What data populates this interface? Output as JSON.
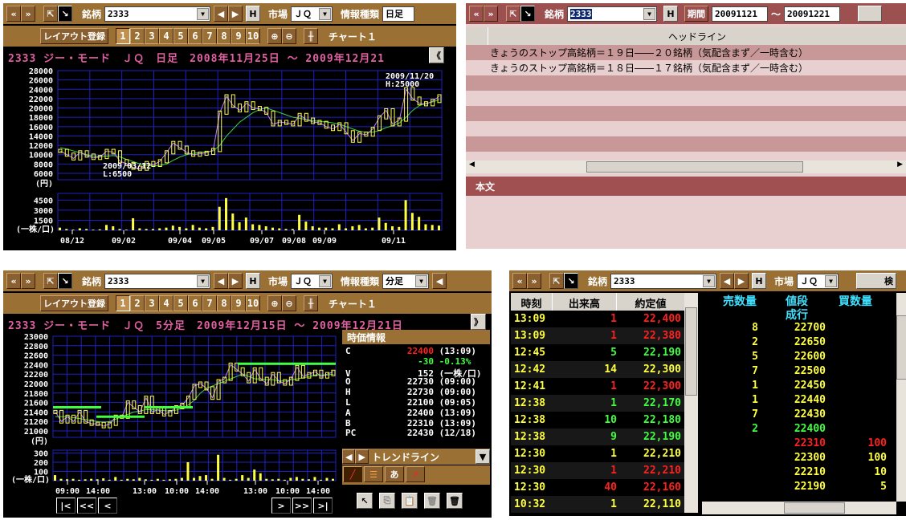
{
  "common": {
    "nav_prev": "«",
    "nav_next": "»",
    "symbol_label": "銘柄",
    "symbol": "2333",
    "h_button": "H",
    "market_label": "市場",
    "market": "ＪＱ",
    "info_type_label": "情報種類",
    "layout_button": "レイアウト登録",
    "layout_numbers": [
      "1",
      "2",
      "3",
      "4",
      "5",
      "6",
      "7",
      "8",
      "9",
      "10"
    ],
    "chart_name": "チャート１",
    "yen_unit": "(円)",
    "vol_unit": "(一株/口)"
  },
  "daily_panel": {
    "info_type": "日足",
    "title": "2333 ジー・モード　ＪＱ　日足　2008年11月25日 ～ 2009年12月21",
    "collapse": "《",
    "high_annot": [
      "2009/11/20",
      "H:25000"
    ],
    "low_annot": [
      "2009/03/12",
      "L:6500"
    ]
  },
  "news_panel": {
    "period_label": "期間",
    "from": "20091121",
    "tilde": "～",
    "to": "20091221",
    "column_header": "ヘッドライン",
    "headlines": [
      "きょうのストップ高銘柄＝１９日――２０銘柄（気配含まず／一時含む）",
      "きょうのストップ高銘柄＝１８日――１７銘柄（気配含まず／一時含む）"
    ],
    "body_header": "本文"
  },
  "intraday_panel": {
    "info_type": "分足",
    "title": "2333 ジー・モード　ＪＱ　5分足　2009年12月15日 ～ 2009年12月21日",
    "expand": "》",
    "quote_header": "時価情報",
    "quote": [
      {
        "k": "C",
        "v": "22400",
        "t": "(13:09)",
        "color": "#ff2020"
      },
      {
        "k": "",
        "v": "-30",
        "t": "-0.13%",
        "color": "#40ff40"
      },
      {
        "k": "V",
        "v": "152",
        "t": "(一株/口)",
        "color": "#ffffff"
      },
      {
        "k": "O",
        "v": "22730",
        "t": "(09:00)",
        "color": "#ffffff"
      },
      {
        "k": "H",
        "v": "22730",
        "t": "(09:00)",
        "color": "#ffffff"
      },
      {
        "k": "L",
        "v": "22100",
        "t": "(09:05)",
        "color": "#ffffff"
      },
      {
        "k": "A",
        "v": "22400",
        "t": "(13:09)",
        "color": "#ffffff"
      },
      {
        "k": "B",
        "v": "22310",
        "t": "(13:09)",
        "color": "#ffffff"
      },
      {
        "k": "PC",
        "v": "22430",
        "t": "(12/18)",
        "color": "#ffffff"
      }
    ],
    "trend_label": "トレンドライン",
    "scroll_buttons": [
      "|<",
      "<<",
      "<",
      ">",
      ">>",
      ">|"
    ]
  },
  "board_panel": {
    "search_button": "検",
    "tick_headers": [
      "時刻",
      "出来高",
      "約定値"
    ],
    "ticks": [
      [
        "13:09",
        "1",
        "22,400",
        "red"
      ],
      [
        "13:09",
        "1",
        "22,380",
        "red"
      ],
      [
        "12:45",
        "5",
        "22,190",
        "green"
      ],
      [
        "12:42",
        "14",
        "22,300",
        "yellow"
      ],
      [
        "12:41",
        "1",
        "22,300",
        "red"
      ],
      [
        "12:38",
        "1",
        "22,170",
        "green"
      ],
      [
        "12:38",
        "10",
        "22,180",
        "green"
      ],
      [
        "12:38",
        "9",
        "22,190",
        "green"
      ],
      [
        "12:30",
        "1",
        "22,210",
        "yellow"
      ],
      [
        "12:30",
        "1",
        "22,210",
        "red"
      ],
      [
        "12:30",
        "40",
        "22,160",
        "red"
      ],
      [
        "10:32",
        "1",
        "22,110",
        "yellow"
      ]
    ],
    "book_headers": [
      "売数量",
      "値段",
      "買数量"
    ],
    "market_order": "成行",
    "book": [
      [
        "8",
        "22700",
        "",
        "yellow"
      ],
      [
        "2",
        "22650",
        "",
        "yellow"
      ],
      [
        "5",
        "22600",
        "",
        "yellow"
      ],
      [
        "7",
        "22500",
        "",
        "yellow"
      ],
      [
        "1",
        "22450",
        "",
        "yellow"
      ],
      [
        "1",
        "22440",
        "",
        "yellow"
      ],
      [
        "7",
        "22430",
        "",
        "yellow"
      ],
      [
        "2",
        "22400",
        "",
        "green"
      ],
      [
        "",
        "22310",
        "100",
        "red"
      ],
      [
        "",
        "22300",
        "100",
        "yellow"
      ],
      [
        "",
        "22210",
        "10",
        "yellow"
      ],
      [
        "",
        "22190",
        "5",
        "yellow"
      ]
    ]
  },
  "colors": {
    "toolbar": "#9a7034",
    "news_toolbar": "#9c5050",
    "grid": "#2020c0",
    "price": "#ffff40",
    "ma_short": "#c080ff",
    "ma_long": "#40d040"
  },
  "chart_data": [
    {
      "type": "line",
      "name": "daily",
      "ylim": [
        6000,
        28000
      ],
      "yticks": [
        28000,
        26000,
        24000,
        22000,
        20000,
        18000,
        16000,
        14000,
        12000,
        10000,
        8000,
        6000
      ],
      "xticks": [
        "08/12",
        "09/02",
        "09/04",
        "09/05",
        "09/07",
        "09/08",
        "09/09",
        "09/11"
      ],
      "close": [
        10800,
        10000,
        9200,
        10500,
        9800,
        9300,
        9500,
        10800,
        10500,
        8600,
        8000,
        7200,
        7000,
        8200,
        7800,
        8600,
        10500,
        12500,
        11500,
        10500,
        10000,
        10200,
        10400,
        11000,
        19000,
        22500,
        20500,
        19500,
        21000,
        20000,
        19800,
        19000,
        16500,
        17000,
        16800,
        16500,
        18500,
        17500,
        17000,
        16800,
        16000,
        15500,
        16500,
        14800,
        13000,
        14500,
        14300,
        15500,
        18000,
        19500,
        16500,
        17500,
        24000,
        22000,
        21000,
        20800,
        21500,
        22500
      ],
      "ma": [
        11500,
        11200,
        10800,
        10400,
        10000,
        9700,
        9600,
        9700,
        9800,
        9500,
        9000,
        8500,
        8000,
        7700,
        7600,
        7700,
        8000,
        8800,
        9500,
        10000,
        10300,
        10500,
        10600,
        10800,
        12000,
        14000,
        15500,
        17000,
        18000,
        19000,
        19700,
        20000,
        19500,
        19000,
        18500,
        18000,
        17800,
        17500,
        17300,
        17100,
        17000,
        16800,
        16500,
        16000,
        15500,
        15000,
        14800,
        14800,
        15200,
        15800,
        16200,
        16800,
        18000,
        19500,
        20500,
        21000,
        21300,
        21800
      ],
      "volume_ylim": [
        0,
        5500
      ],
      "volume_yticks": [
        4500,
        3000,
        1500
      ],
      "volume": [
        400,
        200,
        100,
        300,
        200,
        100,
        150,
        800,
        600,
        200,
        100,
        1800,
        300,
        200,
        200,
        300,
        400,
        700,
        500,
        300,
        800,
        400,
        300,
        500,
        3500,
        4800,
        2500,
        1200,
        1900,
        900,
        800,
        600,
        400,
        300,
        200,
        200,
        2300,
        1300,
        600,
        400,
        400,
        300,
        900,
        300,
        600,
        800,
        300,
        400,
        1900,
        1100,
        600,
        500,
        4500,
        2600,
        2000,
        900,
        800,
        700
      ]
    },
    {
      "type": "line",
      "name": "5min",
      "ylim": [
        21000,
        23000
      ],
      "yticks": [
        23000,
        22800,
        22600,
        22400,
        22200,
        22000,
        21800,
        21600,
        21400,
        21200,
        21000
      ],
      "xticks": [
        "09:00",
        "14:00",
        "13:00",
        "10:00",
        "14:00",
        "13:00",
        "10:00",
        "14:00"
      ],
      "close": [
        21400,
        21200,
        21300,
        21200,
        21400,
        21200,
        21150,
        21150,
        21100,
        21150,
        21300,
        21300,
        21600,
        21500,
        21400,
        21700,
        21400,
        21450,
        21350,
        21400,
        21500,
        21550,
        21700,
        21950,
        22000,
        21900,
        21700,
        22050,
        22100,
        22400,
        22300,
        22200,
        22050,
        22300,
        22100,
        22000,
        22200,
        22050,
        22000,
        22100,
        22350,
        22150,
        22200,
        22250,
        22150,
        22200,
        22250
      ],
      "ma": [
        21300,
        21300,
        21300,
        21280,
        21260,
        21240,
        21220,
        21200,
        21180,
        21200,
        21250,
        21300,
        21350,
        21400,
        21420,
        21450,
        21450,
        21440,
        21430,
        21420,
        21440,
        21480,
        21550,
        21650,
        21800,
        21900,
        21950,
        22000,
        22050,
        22100,
        22150,
        22200,
        22150,
        22100,
        22100,
        22080,
        22080,
        22060,
        22050,
        22080,
        22100,
        22120,
        22150,
        22180,
        22180,
        22180,
        22200
      ],
      "volume_ylim": [
        0,
        330
      ],
      "volume_yticks": [
        300,
        200,
        100
      ],
      "volume": [
        60,
        20,
        15,
        20,
        10,
        15,
        20,
        15,
        25,
        10,
        40,
        10,
        20,
        15,
        30,
        15,
        10,
        20,
        10,
        15,
        20,
        30,
        200,
        30,
        50,
        60,
        20,
        280,
        30,
        10,
        20,
        60,
        30,
        120,
        80,
        20,
        15,
        20,
        10,
        30,
        40,
        20,
        15,
        40,
        10,
        30,
        20
      ]
    }
  ]
}
